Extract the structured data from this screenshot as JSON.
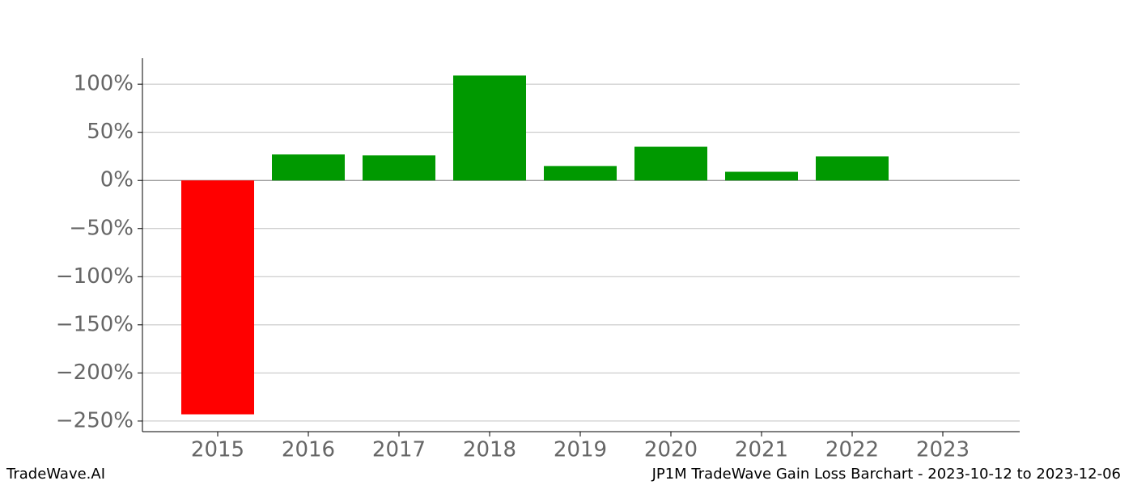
{
  "chart_data": {
    "type": "bar",
    "title": "JP1M TradeWave Gain Loss Barchart - 2023-10-12 to 2023-12-06",
    "brand": "TradeWave.AI",
    "categories": [
      "2015",
      "2016",
      "2017",
      "2018",
      "2019",
      "2020",
      "2021",
      "2022",
      "2023"
    ],
    "values": [
      -243,
      27,
      26,
      109,
      15,
      35,
      9,
      25,
      0
    ],
    "colors": [
      "#ff0000",
      "#009900",
      "#009900",
      "#009900",
      "#009900",
      "#009900",
      "#009900",
      "#009900",
      "#009900"
    ],
    "ylim": [
      -261,
      127
    ],
    "yticks": [
      {
        "value": 100,
        "label": "100%"
      },
      {
        "value": 50,
        "label": "50%"
      },
      {
        "value": 0,
        "label": "0%"
      },
      {
        "value": -50,
        "label": "−50%"
      },
      {
        "value": -100,
        "label": "−100%"
      },
      {
        "value": -150,
        "label": "−150%"
      },
      {
        "value": -200,
        "label": "−200%"
      },
      {
        "value": -250,
        "label": "−250%"
      }
    ],
    "grid": true
  }
}
